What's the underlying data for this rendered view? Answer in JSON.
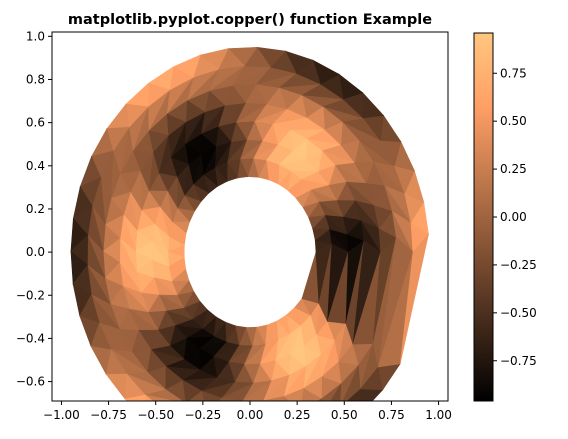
{
  "chart_data": {
    "type": "tripcolor",
    "title": "matplotlib.pyplot.copper() function Example",
    "xlabel": "",
    "ylabel": "",
    "colormap": "copper",
    "xlim": [
      -1.05,
      1.05
    ],
    "ylim": [
      -0.69,
      1.02
    ],
    "x_ticks": [
      -1.0,
      -0.75,
      -0.5,
      -0.25,
      0.0,
      0.25,
      0.5,
      0.75,
      1.0
    ],
    "x_tick_labels": [
      "−1.00",
      "−0.75",
      "−0.50",
      "−0.25",
      "0.00",
      "0.25",
      "0.50",
      "0.75",
      "1.00"
    ],
    "y_ticks": [
      -0.6,
      -0.4,
      -0.2,
      0.0,
      0.2,
      0.4,
      0.6,
      0.8,
      1.0
    ],
    "y_tick_labels": [
      "−0.6",
      "−0.4",
      "−0.2",
      "0.0",
      "0.2",
      "0.4",
      "0.6",
      "0.8",
      "1.0"
    ],
    "colorbar": {
      "vmin": -0.96,
      "vmax": 0.96,
      "ticks": [
        -0.75,
        -0.5,
        -0.25,
        0.0,
        0.25,
        0.5,
        0.75
      ],
      "tick_labels": [
        "−0.75",
        "−0.50",
        "−0.25",
        "0.00",
        "0.25",
        "0.50",
        "0.75"
      ]
    },
    "mesh": {
      "shape": "annular sector with inner radius 0.35, outer radius 0.95, from angle 0 to about 3π/4 (counter-clockwise, wrapping through the left side)",
      "r_min": 0.35,
      "r_max": 0.95,
      "n_radii": 8,
      "n_angles": 36,
      "field": "cos(3·θ) · cos(6·r)-like pattern with dark bands near inner edge at ±45° and bright lobes at top and left"
    }
  }
}
